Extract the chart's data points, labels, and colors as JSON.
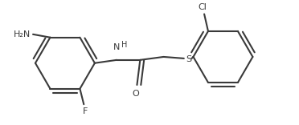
{
  "bg_color": "#ffffff",
  "line_color": "#3a3a3a",
  "lw": 1.5,
  "fig_width": 3.72,
  "fig_height": 1.56,
  "dpi": 100,
  "nh2_label": "H₂N",
  "f_label": "F",
  "cl_label": "Cl",
  "nh_label": "H",
  "o_label": "O",
  "s_label": "S",
  "n_label": "N",
  "label_fontsize": 8.0
}
